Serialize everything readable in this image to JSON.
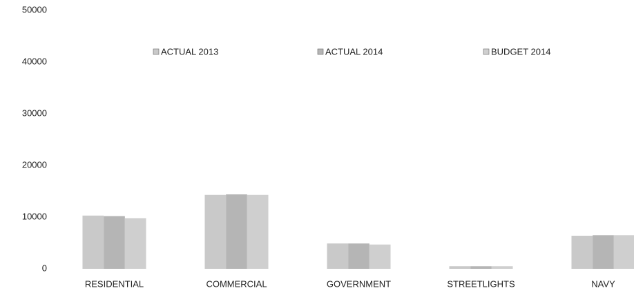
{
  "chart_data": {
    "type": "bar",
    "categories": [
      "RESIDENTIAL",
      "COMMERCIAL",
      "GOVERNMENT",
      "STREETLIGHTS",
      "NAVY"
    ],
    "series": [
      {
        "name": "ACTUAL 2013",
        "color": "#c9c9c9",
        "values": [
          10300,
          14300,
          4900,
          500,
          6400
        ]
      },
      {
        "name": "ACTUAL 2014",
        "color": "#b5b5b5",
        "values": [
          10200,
          14400,
          4900,
          500,
          6500
        ]
      },
      {
        "name": "BUDGET 2014",
        "color": "#cfcfcf",
        "values": [
          9800,
          14300,
          4700,
          500,
          6500
        ]
      }
    ],
    "ylim": [
      0,
      50000
    ],
    "yticks": [
      0,
      10000,
      20000,
      30000,
      40000,
      50000
    ],
    "grid": false,
    "legend": "top"
  }
}
